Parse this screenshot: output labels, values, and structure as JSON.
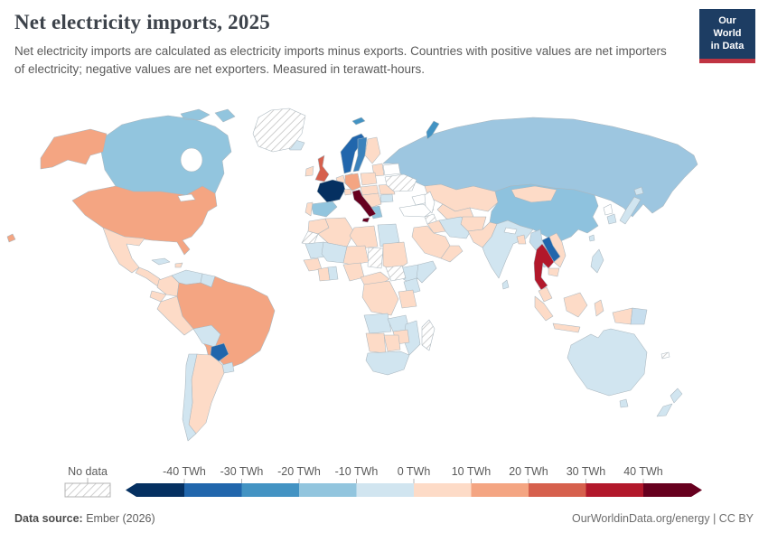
{
  "header": {
    "title": "Net electricity imports, 2025",
    "subtitle": "Net electricity imports are calculated as electricity imports minus exports. Countries with positive values are net importers of electricity; negative values are net exporters. Measured in terawatt-hours.",
    "logo_line1": "Our World",
    "logo_line2": "in Data",
    "logo_bg": "#1d3d63",
    "logo_bar": "#c03442"
  },
  "legend": {
    "no_data_label": "No data",
    "ticks": [
      "-40 TWh",
      "-30 TWh",
      "-20 TWh",
      "-10 TWh",
      "0 TWh",
      "10 TWh",
      "20 TWh",
      "30 TWh",
      "40 TWh"
    ],
    "bin_edges": [
      -40,
      -30,
      -20,
      -10,
      0,
      10,
      20,
      30,
      40
    ],
    "colors": [
      "#053061",
      "#2166ac",
      "#4393c3",
      "#92c5de",
      "#d1e5f0",
      "#fddbc7",
      "#f4a582",
      "#d6604d",
      "#b2182b",
      "#67001f"
    ]
  },
  "footer": {
    "source_label": "Data source:",
    "source_value": " Ember (2026)",
    "right_text": "OurWorldinData.org/energy | CC BY"
  },
  "chart_data": {
    "type": "choropleth-map",
    "title": "Net electricity imports, 2025",
    "unit": "TWh",
    "scale": {
      "bin_edges": [
        -40,
        -30,
        -20,
        -10,
        0,
        10,
        20,
        30,
        40
      ],
      "colors": [
        "#053061",
        "#2166ac",
        "#4393c3",
        "#92c5de",
        "#d1e5f0",
        "#fddbc7",
        "#f4a582",
        "#d6604d",
        "#b2182b",
        "#67001f"
      ],
      "no_data": "hatch"
    },
    "regions": {
      "russia": {
        "label": "Russia",
        "fill": "#9dc6e0"
      },
      "china": {
        "label": "China",
        "fill": "#8ec2de"
      },
      "mongolia": {
        "label": "Mongolia",
        "fill": "#fddbc7"
      },
      "kazakhstan": {
        "label": "Kazakhstan",
        "fill": "#fddbc7"
      },
      "central-asia": {
        "label": "Central Asia",
        "fill": "#fddbc7"
      },
      "caucasus": {
        "label": "Caucasus",
        "fill": "#ffffff"
      },
      "turkey": {
        "label": "Turkey",
        "fill": "#ffffff"
      },
      "syria": {
        "label": "Syria",
        "fill": "hatch"
      },
      "iraq": {
        "label": "Iraq",
        "fill": "#fddbc7"
      },
      "iran": {
        "label": "Iran",
        "fill": "#d1e5f0"
      },
      "saudi-arabia": {
        "label": "Saudi Arabia",
        "fill": "#fddbc7"
      },
      "yemen-oman": {
        "label": "Yemen & Oman",
        "fill": "#fddbc7"
      },
      "afghanistan": {
        "label": "Afghanistan",
        "fill": "#fddbc7"
      },
      "pakistan": {
        "label": "Pakistan",
        "fill": "#fddbc7"
      },
      "india": {
        "label": "India",
        "fill": "#d1e5f0"
      },
      "nepal": {
        "label": "Nepal",
        "fill": "#ffffff"
      },
      "bangladesh": {
        "label": "Bangladesh",
        "fill": "#fddbc7"
      },
      "sri-lanka": {
        "label": "Sri Lanka",
        "fill": "#d1e5f0"
      },
      "myanmar": {
        "label": "Myanmar",
        "fill": "#c3dcec"
      },
      "vietnam": {
        "label": "Vietnam",
        "fill": "#fddbc7"
      },
      "laos": {
        "label": "Laos",
        "fill": "#2166ac"
      },
      "thailand": {
        "label": "Thailand",
        "fill": "#b2182b"
      },
      "cambodia": {
        "label": "Cambodia",
        "fill": "#fddbc7"
      },
      "malaysia": {
        "label": "Malaysia",
        "fill": "#fddbc7"
      },
      "philippines": {
        "label": "Philippines",
        "fill": "#d1e5f0"
      },
      "indonesia": {
        "label": "Indonesia",
        "fill": "#fddbc7"
      },
      "papua-new-guinea": {
        "label": "Papua New Guinea",
        "fill": "#c7deee"
      },
      "taiwan": {
        "label": "Taiwan",
        "fill": "#d1e5f0"
      },
      "north-korea": {
        "label": "North Korea",
        "fill": "#ffffff"
      },
      "south-korea": {
        "label": "South Korea",
        "fill": "#d1e5f0"
      },
      "japan": {
        "label": "Japan",
        "fill": "#d1e5f0"
      },
      "svalbard": {
        "label": "Svalbard",
        "fill": "#4393c3"
      },
      "novaya-zemlya": {
        "label": "Novaya Zemlya",
        "fill": "#4393c3"
      },
      "iceland": {
        "label": "Iceland",
        "fill": "#d1e5f0"
      },
      "ireland": {
        "label": "Ireland",
        "fill": "#fddbc7"
      },
      "united-kingdom": {
        "label": "United Kingdom",
        "fill": "#d6604d"
      },
      "norway": {
        "label": "Norway",
        "fill": "#2166ac"
      },
      "sweden": {
        "label": "Sweden",
        "fill": "#3b82bc"
      },
      "finland": {
        "label": "Finland",
        "fill": "#fddbc7"
      },
      "denmark": {
        "label": "Denmark",
        "fill": "#fddbc7"
      },
      "baltics": {
        "label": "Baltic states",
        "fill": "#fddbc7"
      },
      "benelux": {
        "label": "Benelux",
        "fill": "#fddbc7"
      },
      "germany": {
        "label": "Germany",
        "fill": "#f4a582"
      },
      "poland": {
        "label": "Poland",
        "fill": "#fddbc7"
      },
      "france": {
        "label": "France",
        "fill": "#053061"
      },
      "spain": {
        "label": "Spain",
        "fill": "#92c5de"
      },
      "portugal": {
        "label": "Portugal",
        "fill": "#fddbc7"
      },
      "switzerland": {
        "label": "Switzerland",
        "fill": "#fddbc7"
      },
      "austria-hungary": {
        "label": "Austria & Hungary",
        "fill": "#fddbc7"
      },
      "balkans": {
        "label": "Balkans",
        "fill": "#fddbc7"
      },
      "greece": {
        "label": "Greece",
        "fill": "#92c5de"
      },
      "romania": {
        "label": "Romania",
        "fill": "#fddbc7"
      },
      "bulgaria": {
        "label": "Bulgaria",
        "fill": "#d1e5f0"
      },
      "belarus": {
        "label": "Belarus",
        "fill": "#ffffff"
      },
      "ukraine": {
        "label": "Ukraine",
        "fill": "hatch"
      },
      "italy": {
        "label": "Italy",
        "fill": "#67001f"
      },
      "morocco": {
        "label": "Morocco",
        "fill": "#fddbc7"
      },
      "western-sahara": {
        "label": "Western Sahara",
        "fill": "hatch"
      },
      "algeria": {
        "label": "Algeria",
        "fill": "#fddbc7"
      },
      "libya": {
        "label": "Libya",
        "fill": "#fddbc7"
      },
      "egypt": {
        "label": "Egypt",
        "fill": "#d1e5f0"
      },
      "mauritania": {
        "label": "Mauritania",
        "fill": "#d1e5f0"
      },
      "mali": {
        "label": "Mali",
        "fill": "#d1e5f0"
      },
      "niger": {
        "label": "Niger",
        "fill": "#fddbc7"
      },
      "chad": {
        "label": "Chad",
        "fill": "hatch"
      },
      "sudan": {
        "label": "Sudan",
        "fill": "#fddbc7"
      },
      "ethiopia": {
        "label": "Ethiopia",
        "fill": "#d1e5f0"
      },
      "somalia": {
        "label": "Somalia",
        "fill": "#d1e5f0"
      },
      "senegal-guinea": {
        "label": "Senegal & Guinea",
        "fill": "#fddbc7"
      },
      "ivory-coast": {
        "label": "Ivory Coast",
        "fill": "#fddbc7"
      },
      "ghana": {
        "label": "Ghana",
        "fill": "#d1e5f0"
      },
      "nigeria": {
        "label": "Nigeria",
        "fill": "#fddbc7"
      },
      "cameroon-car": {
        "label": "Cameroon & Central African Republic",
        "fill": "#fddbc7"
      },
      "south-sudan": {
        "label": "South Sudan",
        "fill": "hatch"
      },
      "kenya": {
        "label": "Kenya",
        "fill": "#d1e5f0"
      },
      "drc": {
        "label": "Democratic Republic of Congo",
        "fill": "#fddbc7"
      },
      "tanzania": {
        "label": "Tanzania",
        "fill": "#fddbc7"
      },
      "angola": {
        "label": "Angola",
        "fill": "#d1e5f0"
      },
      "zambia": {
        "label": "Zambia",
        "fill": "#d1e5f0"
      },
      "mozambique": {
        "label": "Mozambique",
        "fill": "#d1e5f0"
      },
      "zimbabwe": {
        "label": "Zimbabwe",
        "fill": "#fddbc7"
      },
      "namibia": {
        "label": "Namibia",
        "fill": "#fddbc7"
      },
      "botswana": {
        "label": "Botswana",
        "fill": "#fddbc7"
      },
      "south-africa": {
        "label": "South Africa",
        "fill": "#d1e5f0"
      },
      "madagascar": {
        "label": "Madagascar",
        "fill": "hatch"
      },
      "canada": {
        "label": "Canada",
        "fill": "#92c5de"
      },
      "united-states": {
        "label": "United States",
        "fill": "#f4a582"
      },
      "greenland": {
        "label": "Greenland",
        "fill": "hatch"
      },
      "mexico": {
        "label": "Mexico",
        "fill": "#fddbc7"
      },
      "central-america": {
        "label": "Central America",
        "fill": "#fddbc7"
      },
      "cuba": {
        "label": "Cuba",
        "fill": "#d1e5f0"
      },
      "hispaniola": {
        "label": "Hispaniola",
        "fill": "#fddbc7"
      },
      "colombia": {
        "label": "Colombia",
        "fill": "#fddbc7"
      },
      "venezuela": {
        "label": "Venezuela",
        "fill": "#d1e5f0"
      },
      "guyanas": {
        "label": "Guyana & Suriname",
        "fill": "#d1e5f0"
      },
      "ecuador": {
        "label": "Ecuador",
        "fill": "#fddbc7"
      },
      "peru": {
        "label": "Peru",
        "fill": "#fddbc7"
      },
      "brazil": {
        "label": "Brazil",
        "fill": "#f4a582"
      },
      "bolivia": {
        "label": "Bolivia",
        "fill": "#d1e5f0"
      },
      "paraguay": {
        "label": "Paraguay",
        "fill": "#2166ac"
      },
      "uruguay": {
        "label": "Uruguay",
        "fill": "#d1e5f0"
      },
      "argentina": {
        "label": "Argentina",
        "fill": "#fddbc7"
      },
      "chile": {
        "label": "Chile",
        "fill": "#d1e5f0"
      },
      "australia": {
        "label": "Australia",
        "fill": "#d1e5f0"
      },
      "new-zealand": {
        "label": "New Zealand",
        "fill": "#d1e5f0"
      },
      "new-caledonia": {
        "label": "New Caledonia",
        "fill": "hatch"
      }
    }
  }
}
